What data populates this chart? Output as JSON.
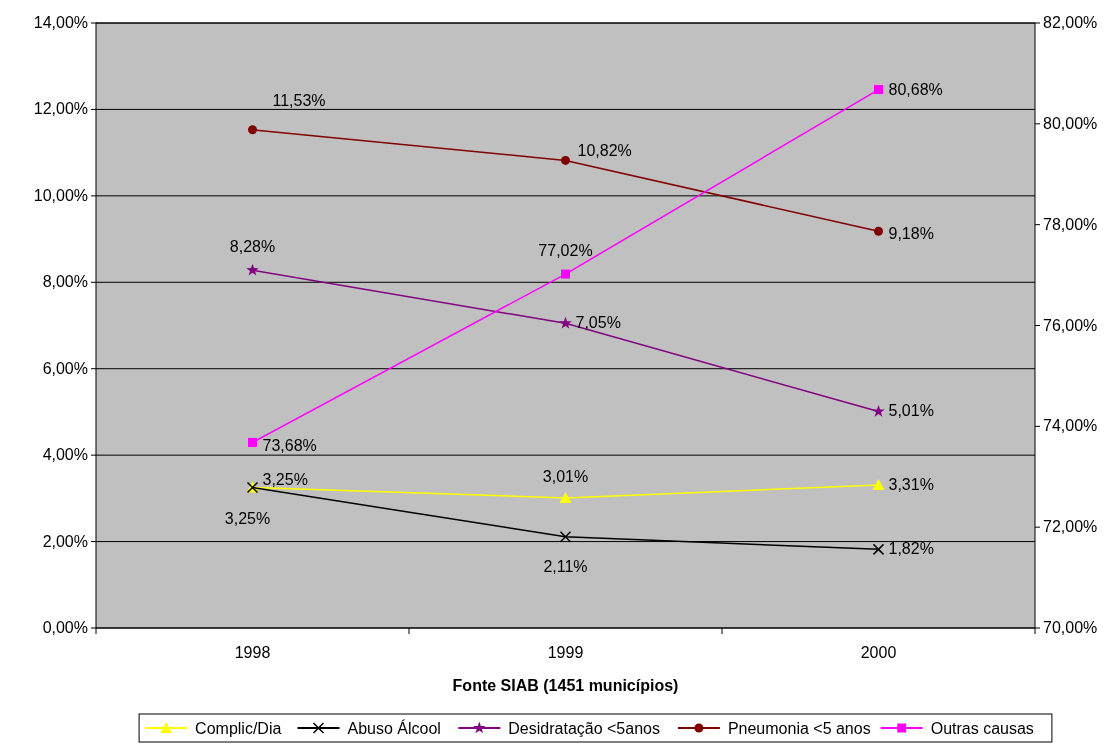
{
  "chart_data": {
    "type": "line",
    "xlabel": "Fonte SIAB (1451 municípios)",
    "categories": [
      "1998",
      "1999",
      "2000"
    ],
    "ylim": [
      0,
      14
    ],
    "yticks": [
      {
        "value": 0,
        "label": "0,00%"
      },
      {
        "value": 2,
        "label": "2,00%"
      },
      {
        "value": 4,
        "label": "4,00%"
      },
      {
        "value": 6,
        "label": "6,00%"
      },
      {
        "value": 8,
        "label": "8,00%"
      },
      {
        "value": 10,
        "label": "10,00%"
      },
      {
        "value": 12,
        "label": "12,00%"
      },
      {
        "value": 14,
        "label": "14,00%"
      }
    ],
    "y2lim": [
      70,
      82
    ],
    "y2ticks": [
      {
        "value": 70,
        "label": "70,00%"
      },
      {
        "value": 72,
        "label": "72,00%"
      },
      {
        "value": 74,
        "label": "74,00%"
      },
      {
        "value": 76,
        "label": "76,00%"
      },
      {
        "value": 78,
        "label": "78,00%"
      },
      {
        "value": 80,
        "label": "80,00%"
      },
      {
        "value": 82,
        "label": "82,00%"
      }
    ],
    "grid": "y",
    "legend": "bottom",
    "series": [
      {
        "name": "Complic/Dia",
        "color": "#ffff00",
        "marker": "triangle",
        "values": [
          3.25,
          3.01,
          3.31
        ],
        "value_labels": [
          "3,25%",
          "3,01%",
          "3,31%"
        ]
      },
      {
        "name": "Abuso Álcool",
        "color": "#000000",
        "marker": "cross",
        "values": [
          3.25,
          2.11,
          1.82
        ],
        "value_labels": [
          "3,25%",
          "2,11%",
          "1,82%"
        ]
      },
      {
        "name": "Desidratação <5anos",
        "color": "#800080",
        "marker": "star",
        "values": [
          8.28,
          7.05,
          5.01
        ],
        "value_labels": [
          "8,28%",
          "7,05%",
          "5,01%"
        ]
      },
      {
        "name": "Pneumonia <5 anos",
        "color": "#800000",
        "marker": "circle",
        "values": [
          11.53,
          10.82,
          9.18
        ],
        "value_labels": [
          "11,53%",
          "10,82%",
          "9,18%"
        ]
      },
      {
        "name": "Outras causas",
        "color": "#ff00ff",
        "marker": "square",
        "axis": "y2",
        "values": [
          73.68,
          77.02,
          80.68
        ],
        "value_labels": [
          "73,68%",
          "77,02%",
          "80,68%"
        ]
      }
    ]
  }
}
